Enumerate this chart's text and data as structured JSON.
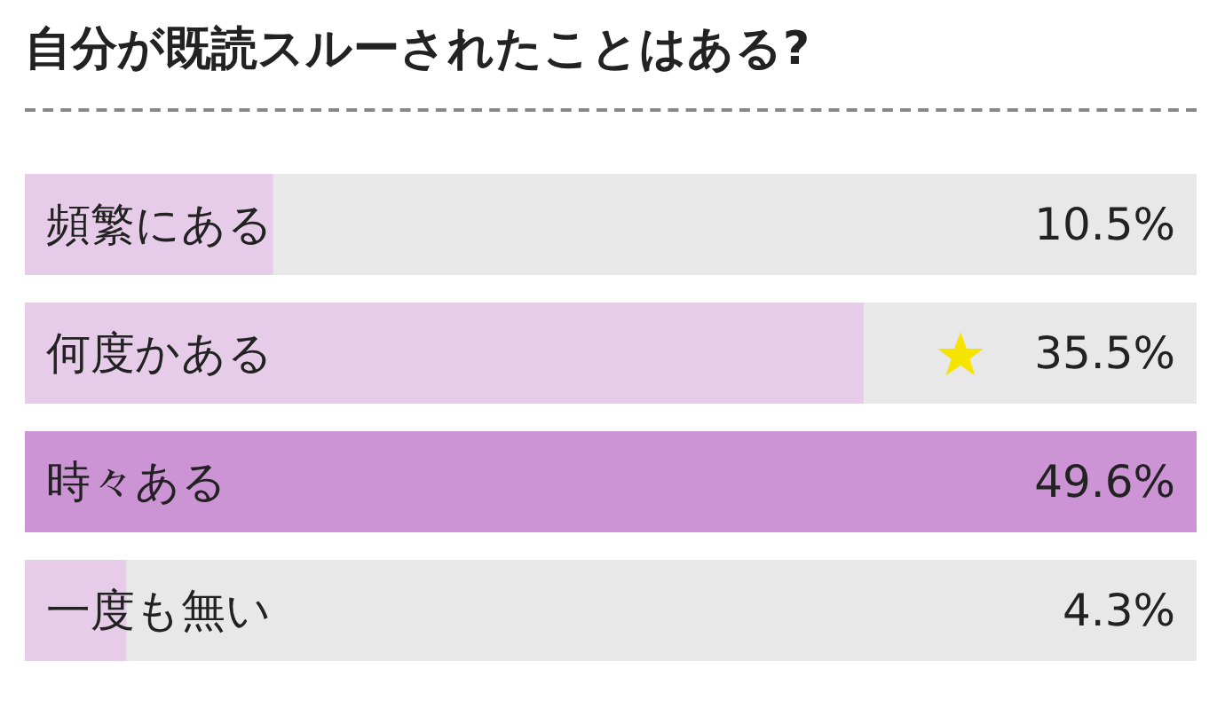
{
  "chart_data": {
    "type": "bar",
    "orientation": "horizontal",
    "title": "自分が既読スルーされたことはある?",
    "categories": [
      "頻繁にある",
      "何度かある",
      "時々ある",
      "一度も無い"
    ],
    "values": [
      10.5,
      35.5,
      49.6,
      4.3
    ],
    "colors": [
      "#e6cce8",
      "#e6cce8",
      "#cc94d4",
      "#e6cce8"
    ],
    "value_labels": [
      "10.5%",
      "35.5%",
      "49.6%",
      "4.3%"
    ]
  }
}
